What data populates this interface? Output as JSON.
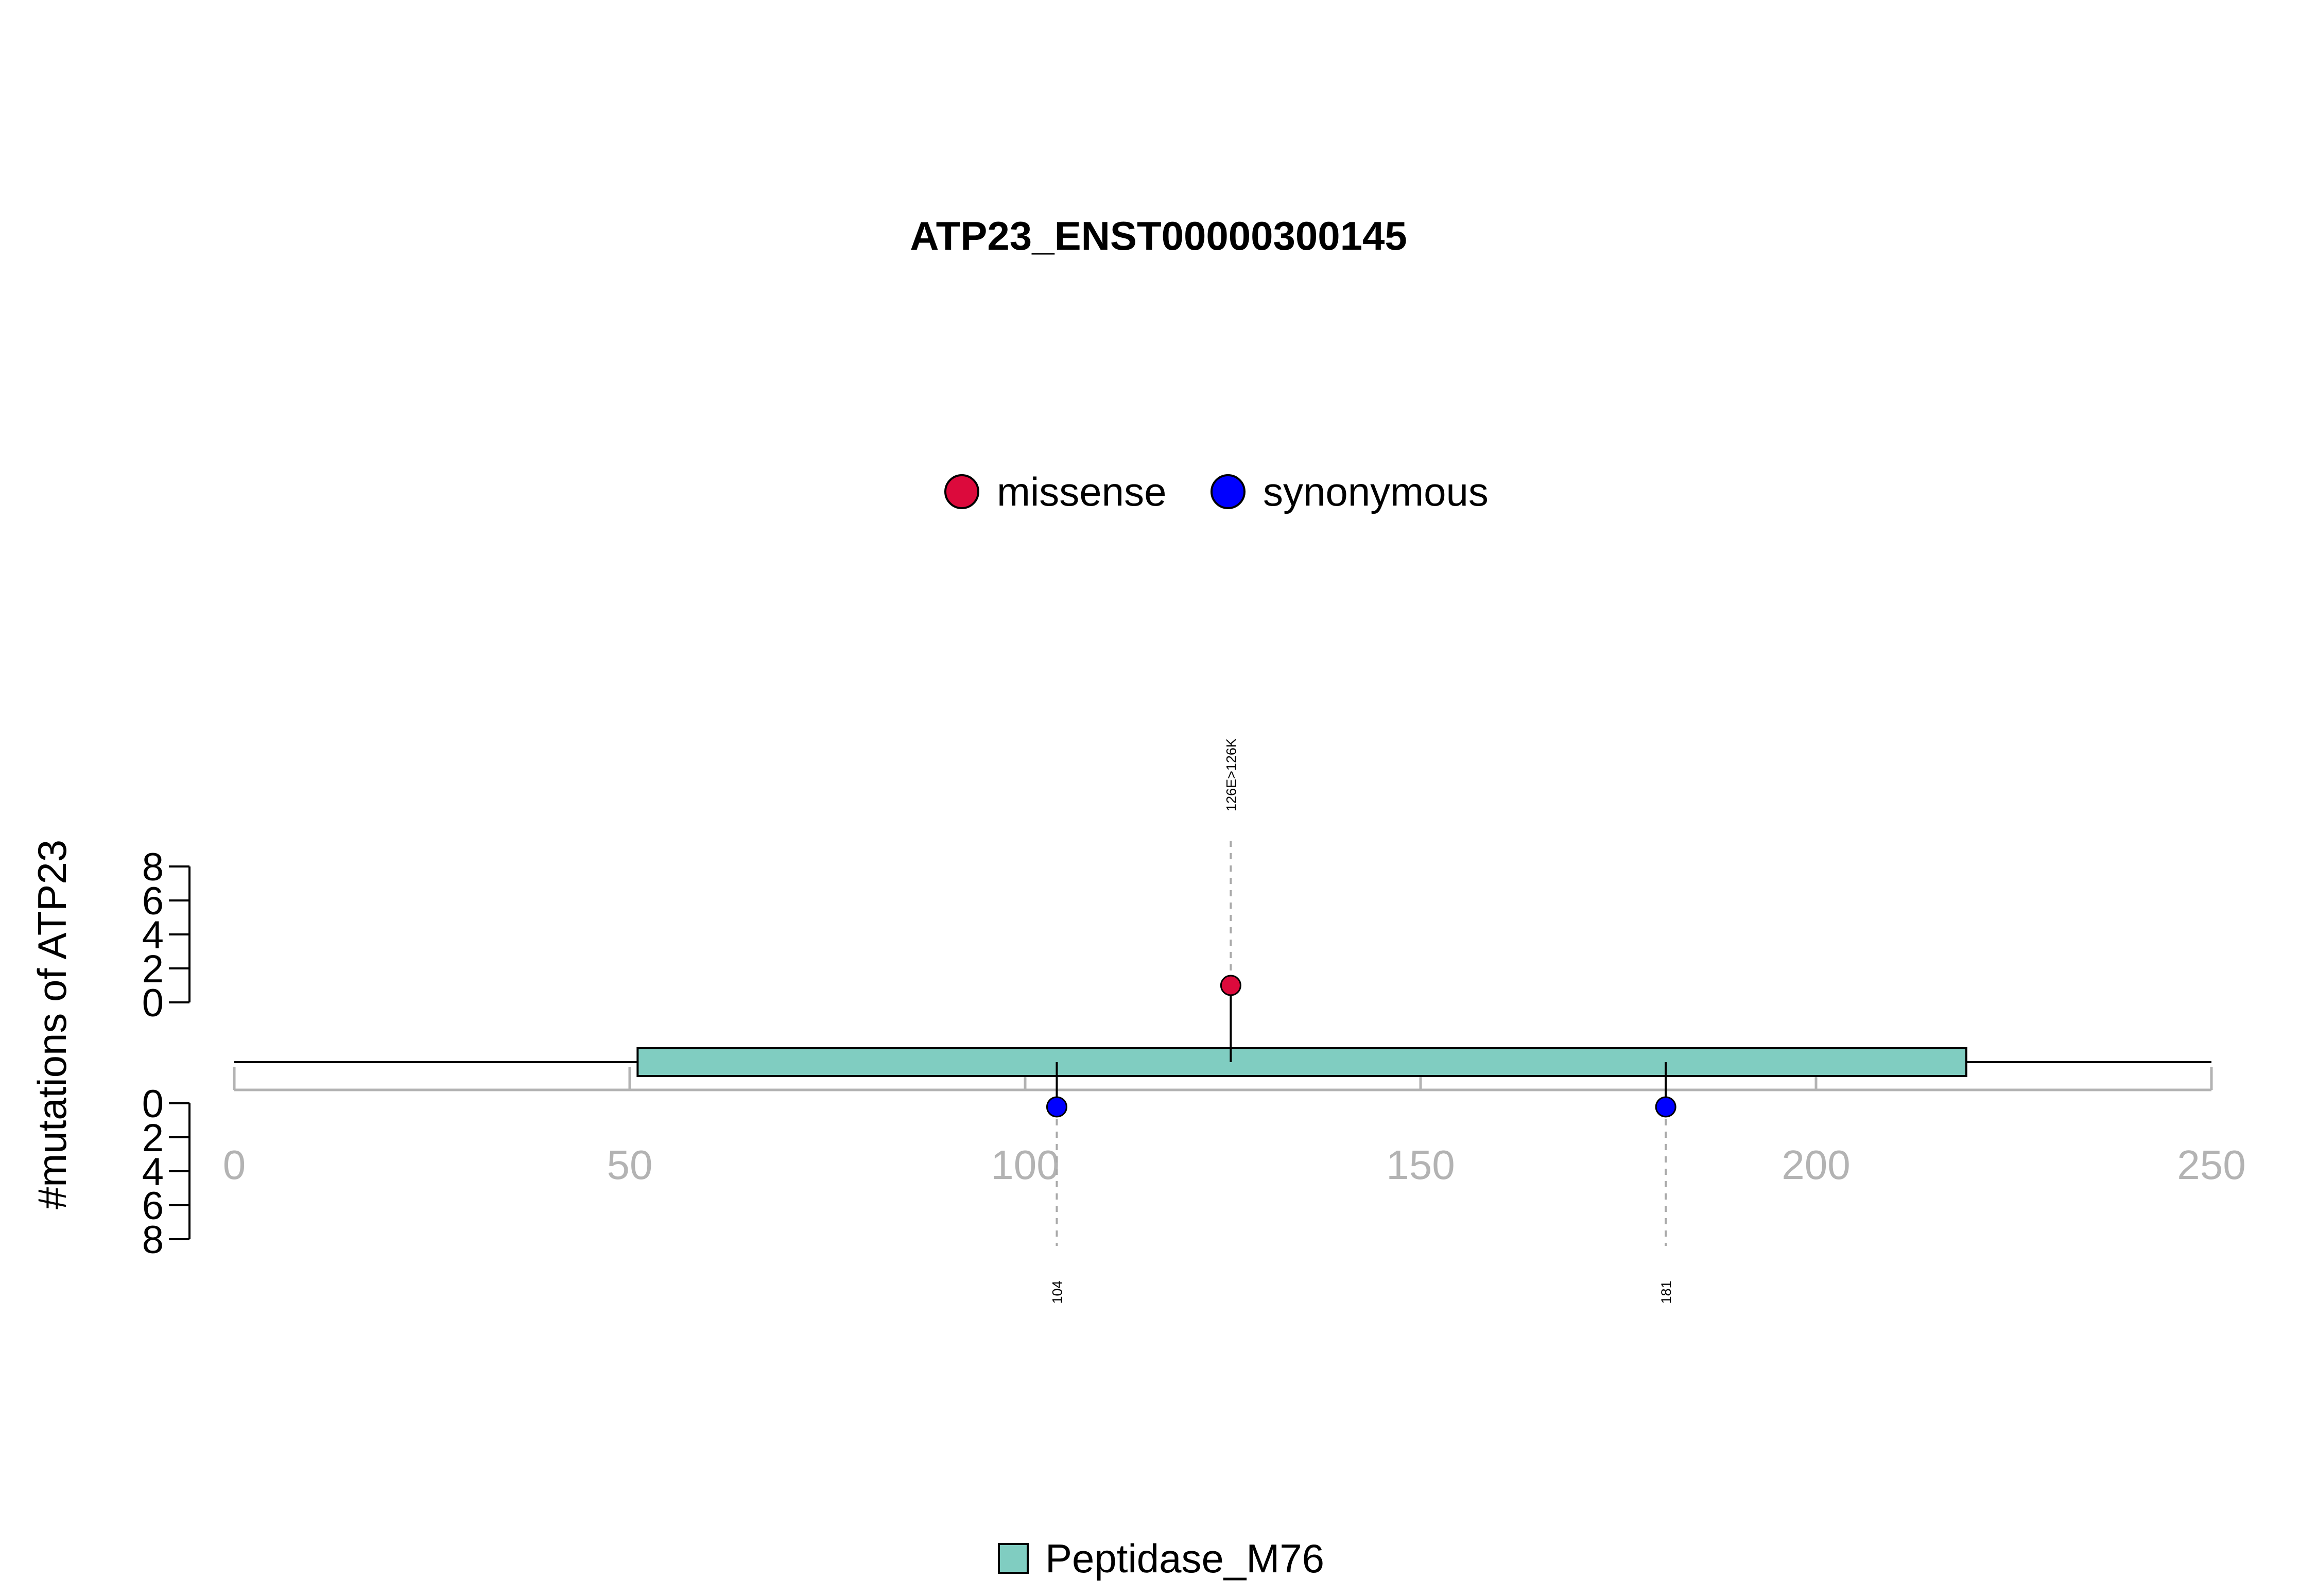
{
  "chart_data": {
    "type": "lollipop",
    "title": "ATP23_ENST00000300145",
    "ylabel": "#mutations of ATP23",
    "xlim": [
      0,
      250
    ],
    "x_ticks": [
      "0",
      "50",
      "100",
      "150",
      "200",
      "250"
    ],
    "y_ticks_upper": [
      "0",
      "2",
      "4",
      "6",
      "8"
    ],
    "y_ticks_lower": [
      "0",
      "2",
      "4",
      "6",
      "8"
    ],
    "protein_length": 250,
    "mutation_legend": [
      {
        "label": "missense",
        "color": "#dc0a3c"
      },
      {
        "label": "synonymous",
        "color": "#0000ff"
      }
    ],
    "domain_legend": [
      {
        "label": "Peptidase_M76",
        "color": "#80cdc1"
      }
    ],
    "domains": [
      {
        "name": "Peptidase_M76",
        "start": 51,
        "end": 219,
        "color": "#80cdc1"
      }
    ],
    "mutations": [
      {
        "position": 126,
        "count": 1,
        "type": "missense",
        "side": "up",
        "label": "126E>126K",
        "color": "#dc0a3c"
      },
      {
        "position": 104,
        "count": 1,
        "type": "synonymous",
        "side": "down",
        "label": "104",
        "color": "#0000ff"
      },
      {
        "position": 181,
        "count": 1,
        "type": "synonymous",
        "side": "down",
        "label": "181",
        "color": "#0000ff"
      }
    ],
    "axis_color": "#b3b3b3",
    "grid": false
  }
}
